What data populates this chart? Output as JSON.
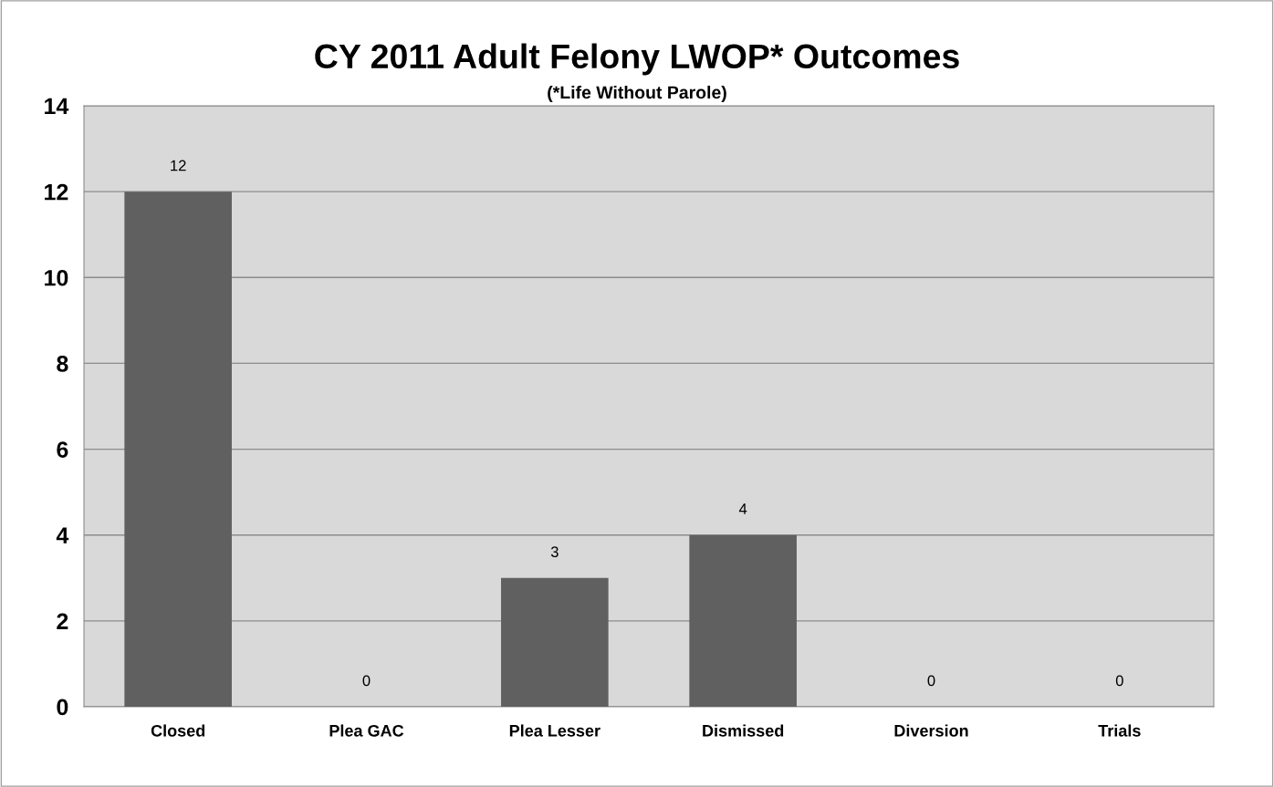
{
  "chart_data": {
    "type": "bar",
    "title": "CY 2011 Adult Felony LWOP* Outcomes",
    "subtitle": "(*Life Without Parole)",
    "categories": [
      "Closed",
      "Plea GAC",
      "Plea Lesser",
      "Dismissed",
      "Diversion",
      "Trials"
    ],
    "values": [
      12,
      0,
      3,
      4,
      0,
      0
    ],
    "color": "#606060",
    "ylim": [
      0,
      14
    ],
    "yticks": [
      0,
      2,
      4,
      6,
      8,
      10,
      12,
      14
    ],
    "grid": "y",
    "data_labels": true
  }
}
